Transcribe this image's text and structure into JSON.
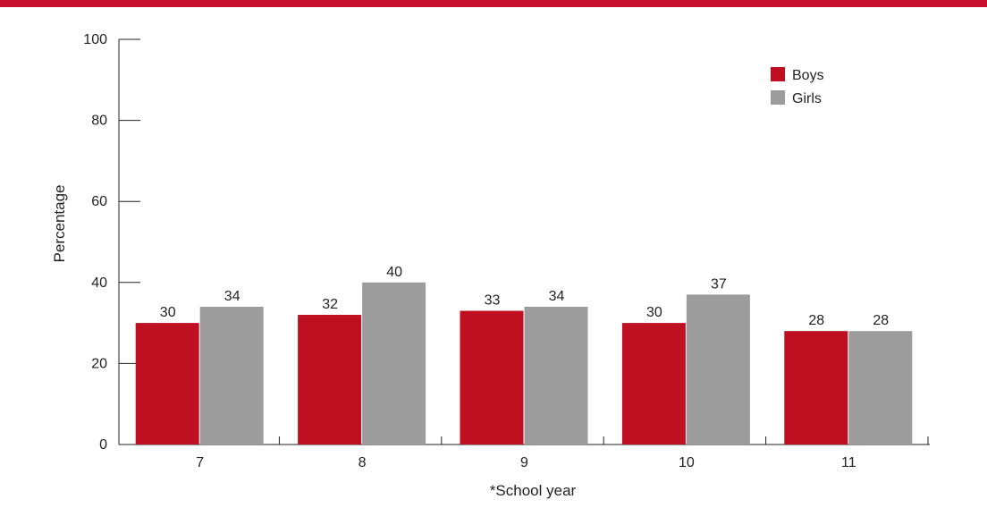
{
  "colors": {
    "top_band": "#c8102e",
    "boys": "#be1020",
    "girls": "#9c9c9c",
    "axis": "#222222"
  },
  "chart_data": {
    "type": "bar",
    "xlabel": "*School year",
    "ylabel": "Percentage",
    "ylim": [
      0,
      100
    ],
    "yticks": [
      0,
      20,
      40,
      60,
      80,
      100
    ],
    "categories": [
      "7",
      "8",
      "9",
      "10",
      "11"
    ],
    "series": [
      {
        "name": "Boys",
        "values": [
          30,
          32,
          33,
          30,
          28
        ]
      },
      {
        "name": "Girls",
        "values": [
          34,
          40,
          34,
          37,
          28
        ]
      }
    ],
    "data_labels": true,
    "legend_position": "top-right",
    "grid": false
  }
}
